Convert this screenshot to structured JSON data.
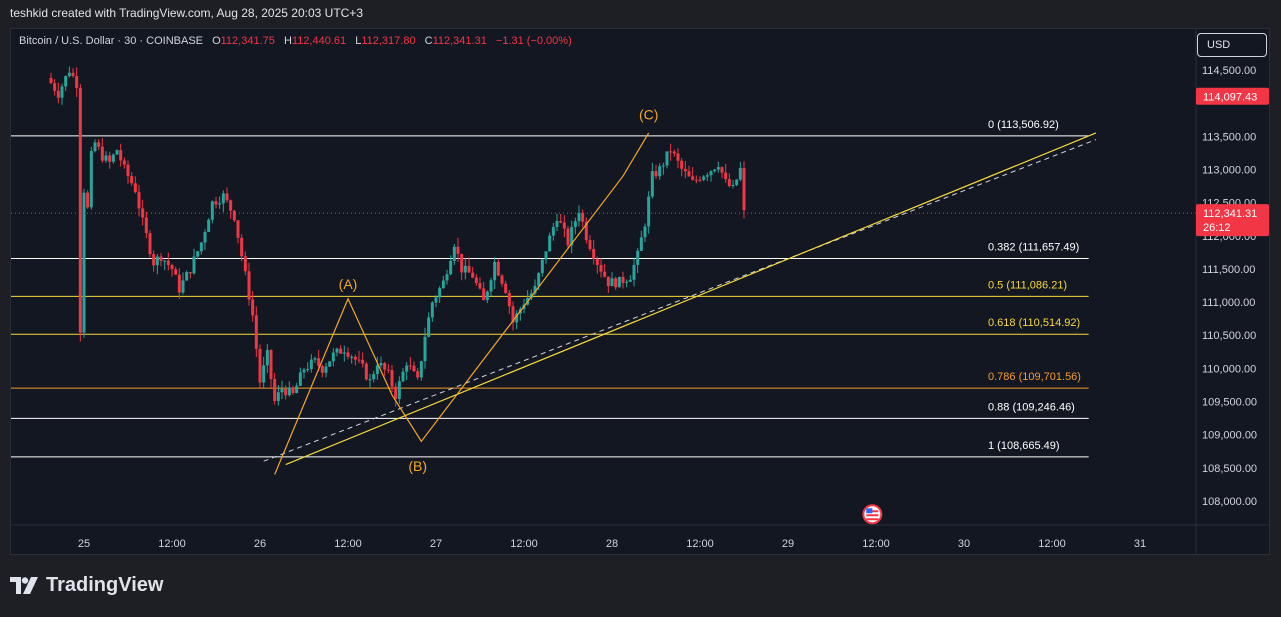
{
  "header": {
    "created_by": "teshkid created with TradingView.com, Aug 28, 2025 20:03 UTC+3"
  },
  "legend": {
    "symbol": "Bitcoin / U.S. Dollar · 30 · COINBASE",
    "open_label": "O",
    "open": "112,341.75",
    "high_label": "H",
    "high": "112,440.61",
    "low_label": "L",
    "low": "112,317.80",
    "close_label": "C",
    "close": "112,341.31",
    "change": "−1.31 (−0.00%)"
  },
  "currency_button": "USD",
  "price_axis": {
    "ticks": [
      {
        "label": "114,500.00",
        "value": 114500
      },
      {
        "label": "113,500.00",
        "value": 113500
      },
      {
        "label": "113,000.00",
        "value": 113000
      },
      {
        "label": "112,500.00",
        "value": 112500
      },
      {
        "label": "112,000.00",
        "value": 112000
      },
      {
        "label": "111,500.00",
        "value": 111500
      },
      {
        "label": "111,000.00",
        "value": 111000
      },
      {
        "label": "110,500.00",
        "value": 110500
      },
      {
        "label": "110,000.00",
        "value": 110000
      },
      {
        "label": "109,500.00",
        "value": 109500
      },
      {
        "label": "109,000.00",
        "value": 109000
      },
      {
        "label": "108,500.00",
        "value": 108500
      },
      {
        "label": "108,000.00",
        "value": 108000
      }
    ],
    "high_marker": "114,097.43",
    "current_price": "112,341.31",
    "countdown": "26:12"
  },
  "time_axis": [
    "25",
    "12:00",
    "26",
    "12:00",
    "27",
    "12:00",
    "28",
    "12:00",
    "29",
    "12:00",
    "30",
    "12:00",
    "31"
  ],
  "fib_levels": [
    {
      "label": "0 (113,506.92)",
      "value": 113506.92,
      "color": "#ffffff"
    },
    {
      "label": "0.382 (111,657.49)",
      "value": 111657.49,
      "color": "#ffffff"
    },
    {
      "label": "0.5 (111,086.21)",
      "value": 111086.21,
      "color": "#f5d93b"
    },
    {
      "label": "0.618 (110,514.92)",
      "value": 110514.92,
      "color": "#f5d93b"
    },
    {
      "label": "0.786 (109,701.56)",
      "value": 109701.56,
      "color": "#f59b2b"
    },
    {
      "label": "0.88 (109,246.46)",
      "value": 109246.46,
      "color": "#ffffff"
    },
    {
      "label": "1 (108,665.49)",
      "value": 108665.49,
      "color": "#ffffff"
    }
  ],
  "wave_labels": [
    "(A)",
    "(B)",
    "(C)"
  ],
  "colors": {
    "up": "#26a69a",
    "down": "#f23645",
    "background": "#131722",
    "wave_line": "#f5a623",
    "trend_line": "#f5d93b",
    "label_orange": "#f5a623"
  },
  "brand": "TradingView",
  "chart_data": {
    "type": "candlestick",
    "x_unit": "hours since Aug 25 00:00",
    "ylim": [
      107700,
      115000
    ],
    "x_labels_hours": [
      0,
      12,
      24,
      36,
      48,
      60,
      72,
      84,
      96,
      108,
      120,
      132,
      144
    ],
    "anchors": [
      [
        -5,
        114380
      ],
      [
        -3.5,
        114150
      ],
      [
        -2,
        114500
      ],
      [
        -1,
        114300
      ],
      [
        -0.5,
        110600
      ],
      [
        0,
        112700
      ],
      [
        0.5,
        112400
      ],
      [
        1,
        113200
      ],
      [
        1.5,
        113400
      ],
      [
        2.5,
        113200
      ],
      [
        3.5,
        113100
      ],
      [
        4.5,
        113300
      ],
      [
        5.5,
        113000
      ],
      [
        7,
        112700
      ],
      [
        8,
        112200
      ],
      [
        9.5,
        111600
      ],
      [
        10.5,
        111700
      ],
      [
        12,
        111500
      ],
      [
        13,
        111200
      ],
      [
        14.5,
        111500
      ],
      [
        16,
        111900
      ],
      [
        17.5,
        112500
      ],
      [
        19,
        112600
      ],
      [
        20.5,
        112300
      ],
      [
        22,
        111400
      ],
      [
        23,
        110800
      ],
      [
        24,
        109800
      ],
      [
        25,
        110200
      ],
      [
        26,
        109500
      ],
      [
        27,
        109700
      ],
      [
        28.5,
        109600
      ],
      [
        30,
        110000
      ],
      [
        31.5,
        110100
      ],
      [
        32.5,
        110000
      ],
      [
        34,
        110200
      ],
      [
        35.5,
        110300
      ],
      [
        36.5,
        110200
      ],
      [
        38,
        110000
      ],
      [
        39,
        109800
      ],
      [
        40,
        110100
      ],
      [
        41.5,
        109900
      ],
      [
        42.5,
        109600
      ],
      [
        44,
        110100
      ],
      [
        45.5,
        109800
      ],
      [
        46.5,
        110500
      ],
      [
        47.5,
        111000
      ],
      [
        49,
        111300
      ],
      [
        50.5,
        111900
      ],
      [
        51.5,
        111500
      ],
      [
        53,
        111400
      ],
      [
        54.5,
        111000
      ],
      [
        56,
        111600
      ],
      [
        57.5,
        111200
      ],
      [
        58.5,
        110700
      ],
      [
        60,
        111000
      ],
      [
        61.5,
        111200
      ],
      [
        63,
        111800
      ],
      [
        64.5,
        112300
      ],
      [
        66,
        111900
      ],
      [
        67.5,
        112400
      ],
      [
        68.5,
        112000
      ],
      [
        70,
        111600
      ],
      [
        71.5,
        111300
      ],
      [
        73,
        111300
      ],
      [
        74.5,
        111400
      ],
      [
        75.5,
        111700
      ],
      [
        76.5,
        112200
      ],
      [
        77.5,
        112900
      ],
      [
        78.5,
        113000
      ],
      [
        80,
        113300
      ],
      [
        81.5,
        113000
      ],
      [
        83,
        112800
      ],
      [
        84,
        112900
      ],
      [
        85.5,
        113000
      ],
      [
        86.5,
        113100
      ],
      [
        87.5,
        112800
      ],
      [
        88.5,
        112700
      ],
      [
        89.5,
        113000
      ],
      [
        90,
        112340
      ]
    ],
    "fib_anchor_hours": [
      -5,
      137
    ],
    "wave_path": [
      [
        26,
        108400
      ],
      [
        36,
        111050
      ],
      [
        42,
        109600
      ],
      [
        46,
        108900
      ],
      [
        73.5,
        112900
      ],
      [
        77,
        113550
      ]
    ],
    "trend_line": [
      [
        27.5,
        108550
      ],
      [
        138,
        113550
      ]
    ],
    "dashed_line": [
      [
        24.5,
        108600
      ],
      [
        138,
        113450
      ]
    ],
    "current_price_value": 112341.31,
    "high_marker_value": 114097.43,
    "wave_label_points": [
      [
        36,
        111200
      ],
      [
        45.5,
        108450
      ],
      [
        77,
        113750
      ]
    ],
    "event_marker_hour": 107.5,
    "event_marker_price": 107800
  }
}
